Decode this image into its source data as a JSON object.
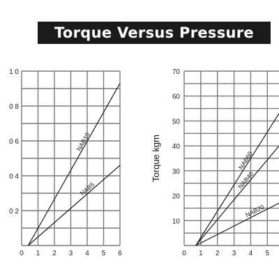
{
  "title": "Torque Versus Pressure",
  "colors": {
    "banner": "#1a1a1a",
    "grid": "#7a7a7a",
    "line": "#1a1a1a"
  },
  "chart_data": [
    {
      "type": "line",
      "xlabel": "",
      "ylabel": "",
      "xlim": [
        0,
        6
      ],
      "ylim": [
        0,
        10
      ],
      "grid": true,
      "x_ticks": [
        "0",
        "1",
        "2",
        "3",
        "4",
        "5",
        "6"
      ],
      "y_ticks": [
        "",
        "0 2",
        "0 4",
        "0 6",
        "0 8",
        "1 0"
      ],
      "series": [
        {
          "name": "NAB10",
          "x": [
            0.4,
            6
          ],
          "y": [
            0,
            9.3
          ]
        },
        {
          "name": "NAB5",
          "x": [
            0.4,
            6
          ],
          "y": [
            0,
            4.6
          ]
        }
      ]
    },
    {
      "type": "line",
      "xlabel": "",
      "ylabel": "Torque kgm",
      "xlim": [
        0,
        5.7
      ],
      "ylim": [
        0,
        70
      ],
      "grid": true,
      "x_ticks": [
        "0",
        "1",
        "2",
        "3",
        "4",
        "5"
      ],
      "y_ticks": [
        "",
        "10",
        "20",
        "30",
        "40",
        "50",
        "60",
        "70"
      ],
      "series": [
        {
          "name": "NAB60",
          "x": [
            0.7,
            5.7
          ],
          "y": [
            0,
            53
          ]
        },
        {
          "name": "NAB40",
          "x": [
            0.7,
            5.7
          ],
          "y": [
            0,
            40
          ]
        },
        {
          "name": "NAB20",
          "x": [
            0.7,
            5.7
          ],
          "y": [
            0,
            17
          ]
        }
      ]
    }
  ]
}
